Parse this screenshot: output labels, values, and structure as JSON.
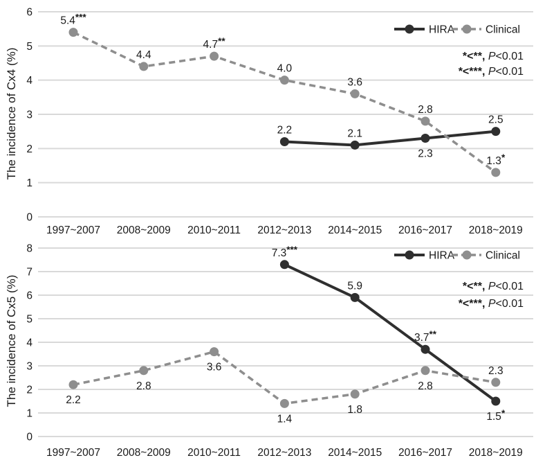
{
  "figure": {
    "background": "#ffffff",
    "grid_color": "#d9d9d9",
    "text_color": "#1a1a1a"
  },
  "chart_data": [
    {
      "type": "line",
      "title": "",
      "xlabel": "",
      "ylabel": "The incidence of Cx4 (%)",
      "categories": [
        "1997~2007",
        "2008~2009",
        "2010~2011",
        "2012~2013",
        "2014~2015",
        "2016~2017",
        "2018~2019"
      ],
      "ylim": [
        0,
        6
      ],
      "yticks": [
        0,
        1,
        2,
        3,
        4,
        5,
        6
      ],
      "grid": true,
      "legend_position": "top-right",
      "series": [
        {
          "name": "HIRA",
          "style": "solid",
          "color": "#2f2f2f",
          "start_index": 3,
          "values": [
            2.2,
            2.1,
            2.3,
            2.5
          ],
          "labels": [
            {
              "text": "2.2",
              "stars": "",
              "pos": "above"
            },
            {
              "text": "2.1",
              "stars": "",
              "pos": "above"
            },
            {
              "text": "2.3",
              "stars": "",
              "pos": "below"
            },
            {
              "text": "2.5",
              "stars": "",
              "pos": "above"
            }
          ]
        },
        {
          "name": "Clinical",
          "style": "dashed",
          "color": "#8e8e8e",
          "start_index": 0,
          "values": [
            5.4,
            4.4,
            4.7,
            4.0,
            3.6,
            2.8,
            1.3
          ],
          "labels": [
            {
              "text": "5.4",
              "stars": "***",
              "pos": "above"
            },
            {
              "text": "4.4",
              "stars": "",
              "pos": "above"
            },
            {
              "text": "4.7",
              "stars": "**",
              "pos": "above"
            },
            {
              "text": "4.0",
              "stars": "",
              "pos": "above"
            },
            {
              "text": "3.6",
              "stars": "",
              "pos": "above"
            },
            {
              "text": "2.8",
              "stars": "",
              "pos": "above"
            },
            {
              "text": "1.3",
              "stars": "*",
              "pos": "above"
            }
          ]
        }
      ],
      "annotations": [
        {
          "left": "*<**, ",
          "italic": "P",
          "right": "<0.01"
        },
        {
          "left": "*<***, ",
          "italic": "P",
          "right": "<0.01"
        }
      ]
    },
    {
      "type": "line",
      "title": "",
      "xlabel": "",
      "ylabel": "The incidence of Cx5 (%)",
      "categories": [
        "1997~2007",
        "2008~2009",
        "2010~2011",
        "2012~2013",
        "2014~2015",
        "2016~2017",
        "2018~2019"
      ],
      "ylim": [
        0,
        8
      ],
      "yticks": [
        0,
        1,
        2,
        3,
        4,
        5,
        6,
        7,
        8
      ],
      "grid": true,
      "legend_position": "top-right",
      "series": [
        {
          "name": "HIRA",
          "style": "solid",
          "color": "#2f2f2f",
          "start_index": 3,
          "values": [
            7.3,
            5.9,
            3.7,
            1.5
          ],
          "labels": [
            {
              "text": "7.3",
              "stars": "***",
              "pos": "above"
            },
            {
              "text": "5.9",
              "stars": "",
              "pos": "above"
            },
            {
              "text": "3.7",
              "stars": "**",
              "pos": "above"
            },
            {
              "text": "1.5",
              "stars": "*",
              "pos": "below"
            }
          ]
        },
        {
          "name": "Clinical",
          "style": "dashed",
          "color": "#8e8e8e",
          "start_index": 0,
          "values": [
            2.2,
            2.8,
            3.6,
            1.4,
            1.8,
            2.8,
            2.3
          ],
          "labels": [
            {
              "text": "2.2",
              "stars": "",
              "pos": "below"
            },
            {
              "text": "2.8",
              "stars": "",
              "pos": "below"
            },
            {
              "text": "3.6",
              "stars": "",
              "pos": "below"
            },
            {
              "text": "1.4",
              "stars": "",
              "pos": "below"
            },
            {
              "text": "1.8",
              "stars": "",
              "pos": "below"
            },
            {
              "text": "2.8",
              "stars": "",
              "pos": "below"
            },
            {
              "text": "2.3",
              "stars": "",
              "pos": "above"
            }
          ]
        }
      ],
      "annotations": [
        {
          "left": "*<**, ",
          "italic": "P",
          "right": "<0.01"
        },
        {
          "left": "*<***, ",
          "italic": "P",
          "right": "<0.01"
        }
      ]
    }
  ]
}
